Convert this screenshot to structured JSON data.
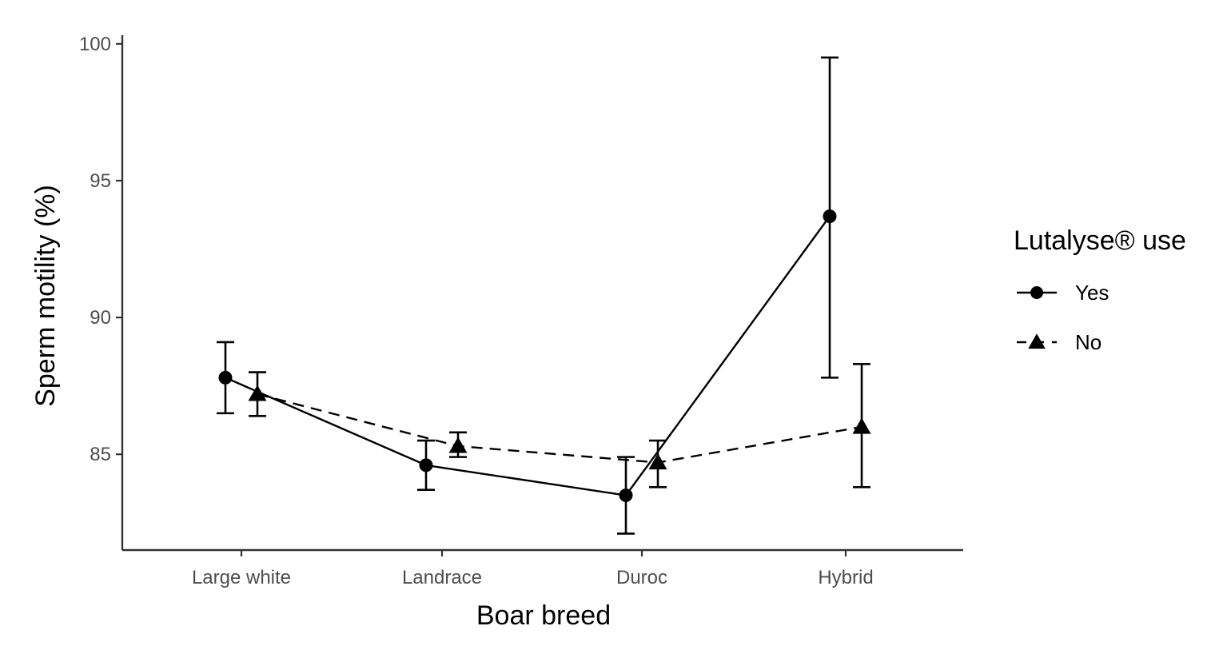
{
  "chart_data": {
    "type": "line",
    "title": "",
    "xlabel": "Boar breed",
    "ylabel": "Sperm motility  (%)",
    "categories": [
      "Large white",
      "Landrace",
      "Duroc",
      "Hybrid"
    ],
    "ylim": [
      81.5,
      100.2
    ],
    "yticks": [
      85,
      90,
      95,
      100
    ],
    "yticks_labels": [
      "85",
      "90",
      "95",
      "100"
    ],
    "grid": false,
    "legend": {
      "title": "Lutalyse® use",
      "placement": "right"
    },
    "series": [
      {
        "name": "Yes",
        "marker": "circle",
        "line_style": "solid",
        "color": "#000000",
        "values": [
          87.8,
          84.6,
          83.5,
          93.7
        ],
        "error_low": [
          86.5,
          83.7,
          82.1,
          87.8
        ],
        "error_high": [
          89.1,
          85.5,
          84.9,
          99.5
        ]
      },
      {
        "name": "No",
        "marker": "triangle",
        "line_style": "dashed",
        "color": "#000000",
        "values": [
          87.2,
          85.3,
          84.7,
          86.0
        ],
        "error_low": [
          86.4,
          84.9,
          83.8,
          83.8
        ],
        "error_high": [
          88.0,
          85.8,
          85.5,
          88.3
        ]
      }
    ]
  }
}
